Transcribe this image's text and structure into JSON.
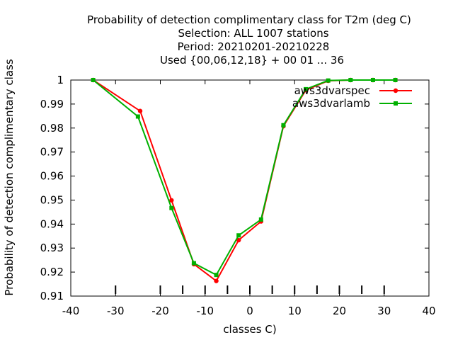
{
  "chart_data": {
    "type": "line",
    "title_lines": [
      "Probability of detection complimentary class  for T2m (deg C)",
      "Selection: ALL   1007 stations",
      "Period: 20210201-20210228",
      "Used {00,06,12,18} + 00 01 ... 36"
    ],
    "xlabel": "classes C)",
    "ylabel": "Probability of detection complimentary class",
    "xlim": [
      -40,
      40
    ],
    "ylim": [
      0.91,
      1.0
    ],
    "x_ticks": [
      -40,
      -30,
      -20,
      -10,
      0,
      10,
      20,
      30,
      40
    ],
    "y_ticks": [
      0.91,
      0.92,
      0.93,
      0.94,
      0.95,
      0.96,
      0.97,
      0.98,
      0.99,
      1.0
    ],
    "y_tick_labels": [
      "0.91",
      "0.92",
      "0.93",
      "0.94",
      "0.95",
      "0.96",
      "0.97",
      "0.98",
      "0.99",
      "1"
    ],
    "class_markers_x": [
      -30,
      -20,
      -15,
      -10,
      -5,
      0,
      5,
      10,
      15,
      20,
      25,
      30
    ],
    "legend_position": "top-right",
    "grid": false,
    "series": [
      {
        "name": "aws3dvarspec",
        "color": "#ff0000",
        "x": [
          -35,
          -24.5,
          -17.5,
          -12.5,
          -7.5,
          -2.5,
          2.5,
          7.5,
          12.5,
          17.5,
          22.5,
          27.5,
          32.5
        ],
        "y": [
          1.0,
          0.9871,
          0.9499,
          0.9233,
          0.9163,
          0.9333,
          0.9411,
          0.9808,
          0.9958,
          0.9997,
          1.0,
          1.0,
          1.0
        ]
      },
      {
        "name": "aws3dvarlamb",
        "color": "#00b000",
        "x": [
          -35,
          -25,
          -17.5,
          -12.5,
          -7.5,
          -2.5,
          2.5,
          7.5,
          12.5,
          17.5,
          22.5,
          27.5,
          32.5
        ],
        "y": [
          1.0,
          0.9848,
          0.9467,
          0.9237,
          0.9188,
          0.9353,
          0.9419,
          0.9812,
          0.9962,
          0.9998,
          1.0,
          1.0,
          1.0
        ]
      }
    ]
  }
}
